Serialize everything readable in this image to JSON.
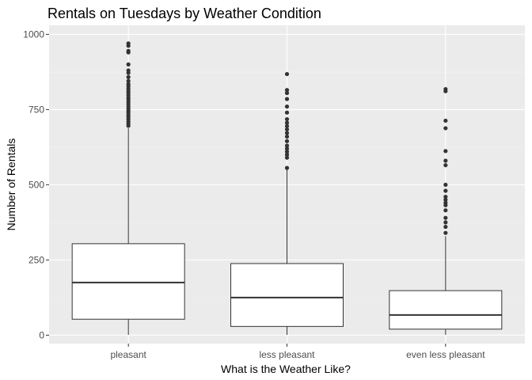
{
  "chart_data": {
    "type": "boxplot",
    "title": "Rentals on Tuesdays by Weather Condition",
    "xlabel": "What is the Weather Like?",
    "ylabel": "Number of Rentals",
    "ylim": [
      -28,
      1030
    ],
    "yticks": [
      0,
      250,
      500,
      750,
      1000
    ],
    "ytick_labels": [
      "0",
      "250",
      "500",
      "750",
      "1000"
    ],
    "categories": [
      "pleasant",
      "less pleasant",
      "even less pleasant"
    ],
    "boxes": [
      {
        "category": "pleasant",
        "whisker_low": 1,
        "q1": 53,
        "median": 175,
        "q3": 304,
        "whisker_high": 688,
        "outliers": [
          696,
          703,
          710,
          718,
          725,
          732,
          740,
          745,
          752,
          760,
          768,
          775,
          783,
          790,
          798,
          805,
          812,
          820,
          828,
          835,
          845,
          858,
          872,
          880,
          900,
          940,
          945,
          962,
          970
        ]
      },
      {
        "category": "less pleasant",
        "whisker_low": 1,
        "q1": 29,
        "median": 125,
        "q3": 238,
        "whisker_high": 553,
        "outliers": [
          556,
          590,
          600,
          610,
          620,
          630,
          645,
          660,
          672,
          684,
          695,
          706,
          718,
          740,
          760,
          785,
          805,
          815,
          868
        ]
      },
      {
        "category": "even less pleasant",
        "whisker_low": 1,
        "q1": 20,
        "median": 67,
        "q3": 148,
        "whisker_high": 329,
        "outliers": [
          340,
          360,
          375,
          390,
          415,
          432,
          440,
          450,
          460,
          480,
          500,
          565,
          580,
          612,
          688,
          713,
          811,
          818
        ]
      }
    ],
    "grid": true,
    "colors": {
      "panel_background": "#ebebeb",
      "grid_major": "#ffffff",
      "grid_minor": "#f5f5f5",
      "box_fill": "#ffffff",
      "box_stroke": "#333333",
      "outlier": "#333333",
      "tick_text": "#4d4d4d",
      "title_text": "#000000"
    }
  }
}
